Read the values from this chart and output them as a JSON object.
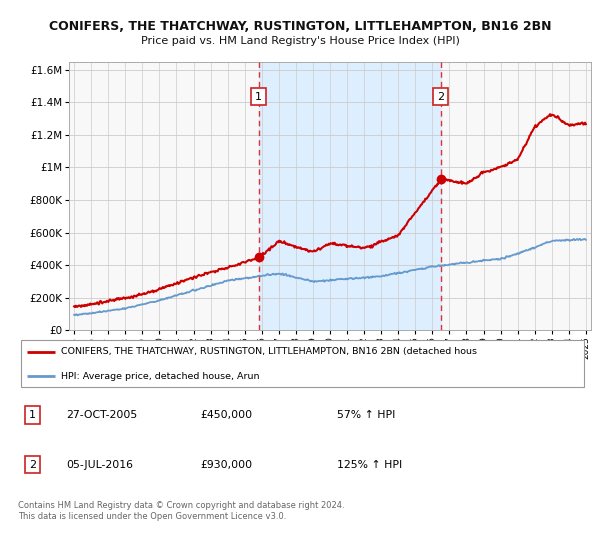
{
  "title": "CONIFERS, THE THATCHWAY, RUSTINGTON, LITTLEHAMPTON, BN16 2BN",
  "subtitle": "Price paid vs. HM Land Registry's House Price Index (HPI)",
  "legend_line1": "CONIFERS, THE THATCHWAY, RUSTINGTON, LITTLEHAMPTON, BN16 2BN (detached hous",
  "legend_line2": "HPI: Average price, detached house, Arun",
  "annotation1_date": "27-OCT-2005",
  "annotation1_price": "£450,000",
  "annotation1_hpi": "57% ↑ HPI",
  "annotation2_date": "05-JUL-2016",
  "annotation2_price": "£930,000",
  "annotation2_hpi": "125% ↑ HPI",
  "footer": "Contains HM Land Registry data © Crown copyright and database right 2024.\nThis data is licensed under the Open Government Licence v3.0.",
  "red_line_color": "#cc0000",
  "blue_line_color": "#6699cc",
  "dashed_line_color": "#dd3333",
  "shade_color": "#ddeeff",
  "background_color": "#ffffff",
  "plot_bg_color": "#f8f8f8",
  "ylim": [
    0,
    1650000
  ],
  "yticks": [
    0,
    200000,
    400000,
    600000,
    800000,
    1000000,
    1200000,
    1400000,
    1600000
  ],
  "ytick_labels": [
    "£0",
    "£200K",
    "£400K",
    "£600K",
    "£800K",
    "£1M",
    "£1.2M",
    "£1.4M",
    "£1.6M"
  ],
  "sale1_year": 2005.82,
  "sale1_price": 450000,
  "sale2_year": 2016.5,
  "sale2_price": 930000
}
